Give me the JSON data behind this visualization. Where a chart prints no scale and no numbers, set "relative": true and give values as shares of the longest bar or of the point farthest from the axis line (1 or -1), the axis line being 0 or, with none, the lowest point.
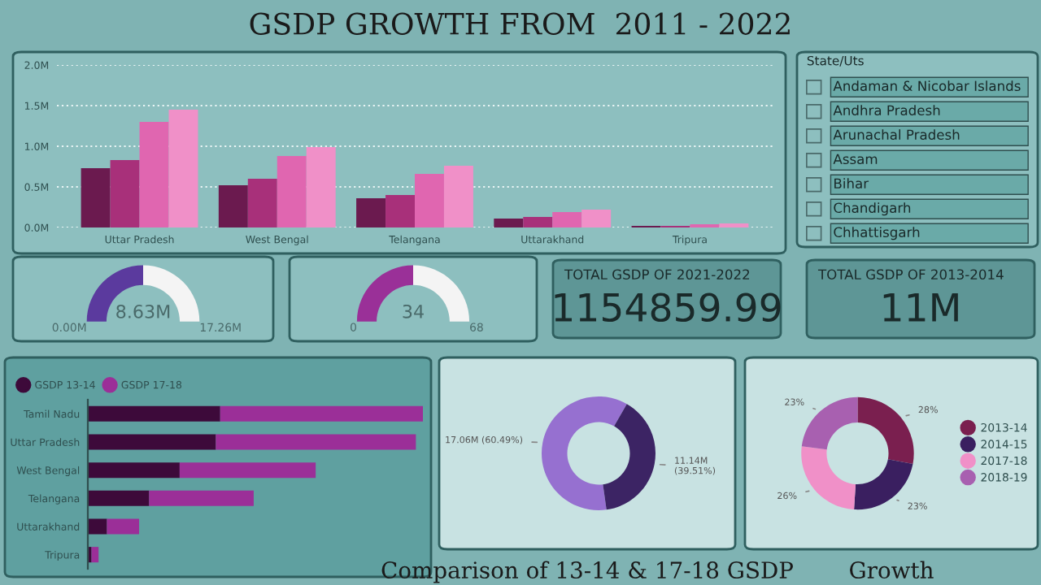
{
  "chart_data": [
    {
      "type": "bar",
      "title": "GSDP GROWTH FROM  2011 - 2022",
      "categories": [
        "Uttar Pradesh",
        "West Bengal",
        "Telangana",
        "Uttarakhand",
        "Tripura"
      ],
      "series": [
        {
          "color": "#6b1a4f",
          "values": [
            730000,
            520000,
            360000,
            110000,
            20000
          ]
        },
        {
          "color": "#a8307a",
          "values": [
            830000,
            600000,
            400000,
            130000,
            20000
          ]
        },
        {
          "color": "#e066b0",
          "values": [
            1300000,
            880000,
            660000,
            190000,
            40000
          ]
        },
        {
          "color": "#f090c8",
          "values": [
            1450000,
            990000,
            760000,
            220000,
            50000
          ]
        }
      ],
      "ylim": [
        0,
        2000000
      ],
      "yticks": [
        {
          "value": 0,
          "label": "0.0M"
        },
        {
          "value": 500000,
          "label": "0.5M"
        },
        {
          "value": 1000000,
          "label": "1.0M"
        },
        {
          "value": 1500000,
          "label": "1.5M"
        },
        {
          "value": 2000000,
          "label": "2.0M"
        }
      ],
      "grid": "y"
    },
    {
      "type": "other",
      "title": "State/Uts",
      "annotations": [
        "Andaman & Nicobar Islands",
        "Andhra Pradesh",
        "Arunachal Pradesh",
        "Assam",
        "Bihar",
        "Chandigarh",
        "Chhattisgarh"
      ]
    },
    {
      "type": "donut",
      "categories": [
        null,
        null
      ],
      "values": [
        8.63,
        8.63
      ],
      "colors": [
        "#5b3a9e",
        "#f4f4f4"
      ],
      "value_labels": [
        "8.63M",
        null
      ],
      "annotations": [
        "0.00M",
        "17.26M"
      ]
    },
    {
      "type": "donut",
      "categories": [
        null,
        null
      ],
      "values": [
        34,
        34
      ],
      "colors": [
        "#9a3098",
        "#f4f4f4"
      ],
      "value_labels": [
        "34",
        null
      ],
      "annotations": [
        "0",
        "68"
      ]
    },
    {
      "type": "other",
      "title": "TOTAL GSDP OF 2021-2022",
      "annotations": [
        "1154859.99"
      ]
    },
    {
      "type": "other",
      "title": "TOTAL GSDP OF 2013-2014",
      "annotations": [
        "11M"
      ]
    },
    {
      "type": "bar",
      "orientation": "horizontal",
      "stacked": true,
      "relative": true,
      "categories": [
        "Tamil Nadu",
        "Uttar Pradesh",
        "West Bengal",
        "Telangana",
        "Uttarakhand",
        "Tripura"
      ],
      "series": [
        {
          "name": "GSDP 13-14",
          "color": "#3d0a3a",
          "values": [
            0.395,
            0.382,
            0.274,
            0.183,
            0.057,
            0.011
          ]
        },
        {
          "name": "GSDP 17-18",
          "color": "#9b2f98",
          "values": [
            0.605,
            0.597,
            0.406,
            0.312,
            0.096,
            0.021
          ]
        }
      ],
      "legend": "top left"
    },
    {
      "type": "donut",
      "title": "Comparison of 13-14 & 17-18 GSDP",
      "categories": [
        null,
        null
      ],
      "values": [
        60.49,
        39.51
      ],
      "colors": [
        "#9670d0",
        "#3c2464"
      ],
      "value_labels": [
        "17.06M (60.49%)",
        "11.14M\n(39.51%)"
      ]
    },
    {
      "type": "donut",
      "title": "Growth",
      "categories": [
        "2013-14",
        "2014-15",
        "2017-18",
        "2018-19"
      ],
      "values": [
        28,
        23,
        26,
        23
      ],
      "colors": [
        "#7a1f4f",
        "#3a1f60",
        "#f090c8",
        "#a860b0"
      ],
      "value_labels": [
        "28%",
        "23%",
        "26%",
        "23%"
      ],
      "legend": "right"
    }
  ]
}
